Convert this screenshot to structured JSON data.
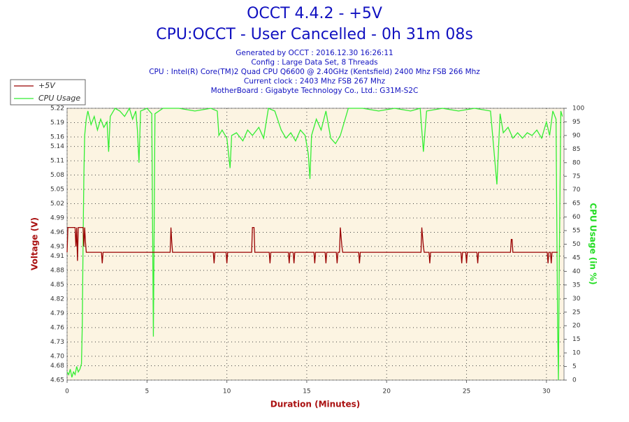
{
  "chart_data": {
    "type": "line",
    "title": "OCCT 4.4.2 - +5V",
    "subtitle": "CPU:OCCT - User Cancelled - 0h 31m 08s",
    "info_lines": [
      "Generated by OCCT : 2016.12.30 16:26:11",
      "Config : Large Data Set, 8 Threads",
      "CPU : Intel(R) Core(TM)2 Quad CPU Q6600 @ 2.40GHz (Kentsfield) 2400 Mhz FSB 266 Mhz",
      "Current clock : 2403 Mhz FSB 267 Mhz",
      "MotherBoard : Gigabyte Technology Co., Ltd.: G31M-S2C"
    ],
    "xlabel": "Duration (Minutes)",
    "ylabel": "Voltage (V)",
    "y2label": "CPU Usage (in %)",
    "xlim": [
      0,
      31.1
    ],
    "xticks": [
      0,
      5,
      10,
      15,
      20,
      25,
      30
    ],
    "ylim": [
      4.65,
      5.22
    ],
    "yticks": [
      4.65,
      4.68,
      {
        "value": 4.7,
        "label": "4.70"
      },
      4.73,
      4.76,
      4.79,
      4.82,
      4.85,
      4.88,
      4.91,
      4.93,
      4.96,
      4.99,
      5.02,
      5.05,
      5.08,
      5.11,
      5.14,
      5.16,
      5.19,
      5.22
    ],
    "y2lim": [
      0,
      100
    ],
    "y2ticks": [
      0,
      5,
      10,
      15,
      20,
      25,
      30,
      35,
      40,
      45,
      50,
      55,
      60,
      65,
      70,
      75,
      80,
      85,
      90,
      95,
      100
    ],
    "grid": true,
    "legend": "top-left",
    "series": [
      {
        "name": "+5V",
        "color": "#990000",
        "x": [
          0,
          0.05,
          0.5,
          0.55,
          0.6,
          0.65,
          0.7,
          1.0,
          1.05,
          1.1,
          1.15,
          1.2,
          2.15,
          2.2,
          2.25,
          6.45,
          6.5,
          6.55,
          6.6,
          9.15,
          9.2,
          9.25,
          9.95,
          10.0,
          10.05,
          11.55,
          11.6,
          11.7,
          11.75,
          12.65,
          12.7,
          12.75,
          13.85,
          13.9,
          13.95,
          14.15,
          14.2,
          14.25,
          15.45,
          15.5,
          15.55,
          16.15,
          16.2,
          16.25,
          16.85,
          16.9,
          16.95,
          17.05,
          17.1,
          17.2,
          17.25,
          18.25,
          18.3,
          18.35,
          22.15,
          22.2,
          22.3,
          22.35,
          22.65,
          22.7,
          22.75,
          24.65,
          24.7,
          24.75,
          24.95,
          25.0,
          25.05,
          25.65,
          25.7,
          25.75,
          27.75,
          27.8,
          27.85,
          27.9,
          30.05,
          30.1,
          30.15,
          30.25,
          30.3,
          30.35,
          30.7
        ],
        "values": [
          4.918,
          4.97,
          4.97,
          4.93,
          4.97,
          4.9,
          4.97,
          4.97,
          4.93,
          4.97,
          4.94,
          4.918,
          4.918,
          4.895,
          4.918,
          4.918,
          4.97,
          4.94,
          4.918,
          4.918,
          4.895,
          4.918,
          4.918,
          4.895,
          4.918,
          4.918,
          4.97,
          4.97,
          4.918,
          4.918,
          4.895,
          4.918,
          4.918,
          4.895,
          4.918,
          4.918,
          4.895,
          4.918,
          4.918,
          4.895,
          4.918,
          4.918,
          4.895,
          4.918,
          4.918,
          4.895,
          4.918,
          4.918,
          4.97,
          4.93,
          4.918,
          4.918,
          4.895,
          4.918,
          4.918,
          4.97,
          4.93,
          4.918,
          4.918,
          4.895,
          4.918,
          4.918,
          4.895,
          4.918,
          4.918,
          4.895,
          4.918,
          4.918,
          4.895,
          4.918,
          4.918,
          4.945,
          4.945,
          4.918,
          4.918,
          4.895,
          4.918,
          4.918,
          4.895,
          4.918,
          4.918
        ]
      },
      {
        "name": "CPU Usage",
        "color": "#33ee33",
        "axis": "y2",
        "x": [
          0,
          0.1,
          0.2,
          0.3,
          0.4,
          0.5,
          0.6,
          0.7,
          0.8,
          0.9,
          0.95,
          1.0,
          1.05,
          1.1,
          1.2,
          1.3,
          1.5,
          1.7,
          1.9,
          2.1,
          2.3,
          2.5,
          2.6,
          2.7,
          3.0,
          3.3,
          3.6,
          3.9,
          4.1,
          4.3,
          4.4,
          4.5,
          4.6,
          5.0,
          5.3,
          5.4,
          5.5,
          6.0,
          7.0,
          8.0,
          9.0,
          9.4,
          9.5,
          9.7,
          10.0,
          10.2,
          10.3,
          10.6,
          11.0,
          11.3,
          11.6,
          12.0,
          12.3,
          12.6,
          13.0,
          13.4,
          13.7,
          14.0,
          14.3,
          14.6,
          14.9,
          15.1,
          15.2,
          15.3,
          15.6,
          15.9,
          16.2,
          16.5,
          16.8,
          17.1,
          17.4,
          17.6,
          18.5,
          19.5,
          20.5,
          21.5,
          22.1,
          22.3,
          22.5,
          23.5,
          24.5,
          25.5,
          26.5,
          26.9,
          27.1,
          27.3,
          27.6,
          27.9,
          28.2,
          28.5,
          28.8,
          29.1,
          29.4,
          29.7,
          30.0,
          30.2,
          30.4,
          30.6,
          30.7,
          30.75,
          30.8,
          30.9,
          31.0
        ],
        "values": [
          3,
          2,
          4,
          1,
          3,
          2,
          5,
          3,
          4,
          6,
          20,
          50,
          75,
          90,
          96,
          99,
          94,
          97,
          92,
          96,
          93,
          95,
          84,
          97,
          100,
          99,
          97,
          100,
          96,
          99,
          92,
          80,
          99,
          100,
          98,
          16,
          98,
          100,
          100,
          99,
          100,
          99,
          90,
          92,
          89,
          78,
          90,
          91,
          88,
          92,
          90,
          93,
          89,
          100,
          99,
          92,
          89,
          91,
          88,
          92,
          90,
          83,
          74,
          90,
          96,
          92,
          99,
          89,
          87,
          90,
          96,
          100,
          100,
          99,
          100,
          99,
          100,
          84,
          99,
          100,
          99,
          100,
          99,
          72,
          98,
          91,
          93,
          89,
          91,
          89,
          91,
          90,
          92,
          89,
          95,
          90,
          99,
          96,
          20,
          0,
          40,
          99,
          97
        ]
      }
    ]
  }
}
